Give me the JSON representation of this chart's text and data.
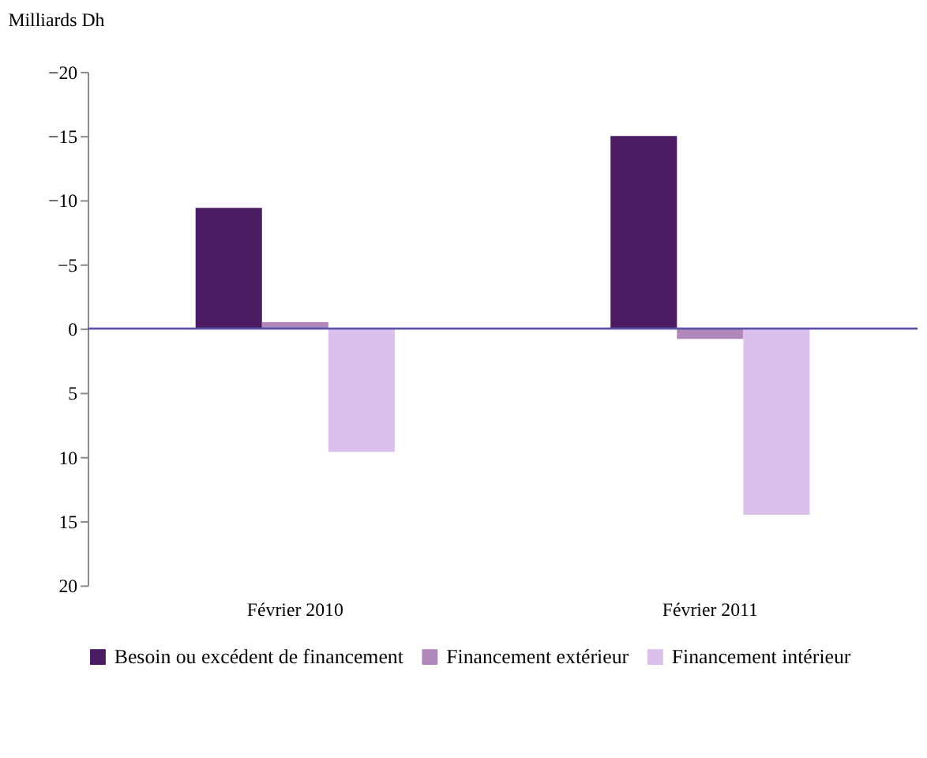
{
  "chart_data": {
    "type": "bar",
    "ylabel": "Milliards Dh",
    "categories": [
      "Février 2010",
      "Février 2011"
    ],
    "series": [
      {
        "name": "Besoin ou excédent de financement",
        "color": "#4a1a62",
        "values": [
          -9.4,
          -15.0
        ]
      },
      {
        "name": "Financement extérieur",
        "color": "#b088bc",
        "values": [
          -0.5,
          0.8
        ]
      },
      {
        "name": "Financement intérieur",
        "color": "#dcc0ec",
        "values": [
          9.6,
          14.5
        ]
      }
    ],
    "ref_lines": [
      {
        "axis": "y",
        "value": 0,
        "color": "#5a55a8",
        "line_style": "solid"
      }
    ],
    "ylim": [
      20,
      -20
    ],
    "yticks": [
      -20,
      -15,
      -10,
      -5,
      0,
      5,
      10,
      15,
      20
    ],
    "grid": false,
    "legend": "bottom"
  }
}
